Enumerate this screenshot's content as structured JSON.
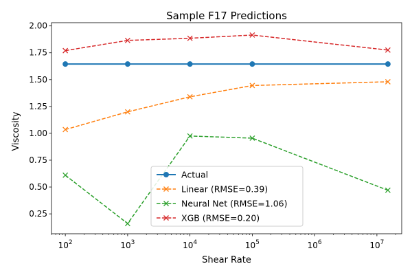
{
  "chart_data": {
    "type": "line",
    "title": "Sample F17 Predictions",
    "xlabel": "Shear Rate",
    "ylabel": "Viscosity",
    "xscale": "log",
    "xlim": [
      60,
      25000000
    ],
    "ylim": [
      0.065,
      2.03
    ],
    "xticks": [
      {
        "value": 100,
        "base": "10",
        "exp": "2"
      },
      {
        "value": 1000,
        "base": "10",
        "exp": "3"
      },
      {
        "value": 10000,
        "base": "10",
        "exp": "4"
      },
      {
        "value": 100000,
        "base": "10",
        "exp": "5"
      },
      {
        "value": 1000000,
        "base": "10",
        "exp": "6"
      },
      {
        "value": 10000000,
        "base": "10",
        "exp": "7"
      }
    ],
    "yticks": [
      {
        "value": 0.25,
        "label": "0.25"
      },
      {
        "value": 0.5,
        "label": "0.50"
      },
      {
        "value": 0.75,
        "label": "0.75"
      },
      {
        "value": 1.0,
        "label": "1.00"
      },
      {
        "value": 1.25,
        "label": "1.25"
      },
      {
        "value": 1.5,
        "label": "1.50"
      },
      {
        "value": 1.75,
        "label": "1.75"
      },
      {
        "value": 2.0,
        "label": "2.00"
      }
    ],
    "x": [
      100,
      1000,
      10000,
      100000,
      15000000
    ],
    "legend_position": "lower center",
    "grid": false,
    "series": [
      {
        "name": "Actual",
        "values": [
          1.645,
          1.645,
          1.645,
          1.645,
          1.645
        ],
        "color": "#1f77b4",
        "linestyle": "solid",
        "marker": "circle"
      },
      {
        "name": "Linear (RMSE=0.39)",
        "values": [
          1.035,
          1.2,
          1.34,
          1.445,
          1.48
        ],
        "color": "#ff7f0e",
        "linestyle": "dashed",
        "marker": "x"
      },
      {
        "name": "Neural Net (RMSE=1.06)",
        "values": [
          0.61,
          0.16,
          0.975,
          0.955,
          0.47
        ],
        "color": "#2ca02c",
        "linestyle": "dashed",
        "marker": "x"
      },
      {
        "name": "XGB (RMSE=0.20)",
        "values": [
          1.77,
          1.865,
          1.885,
          1.915,
          1.775
        ],
        "color": "#d62728",
        "linestyle": "dashed",
        "marker": "x"
      }
    ]
  }
}
